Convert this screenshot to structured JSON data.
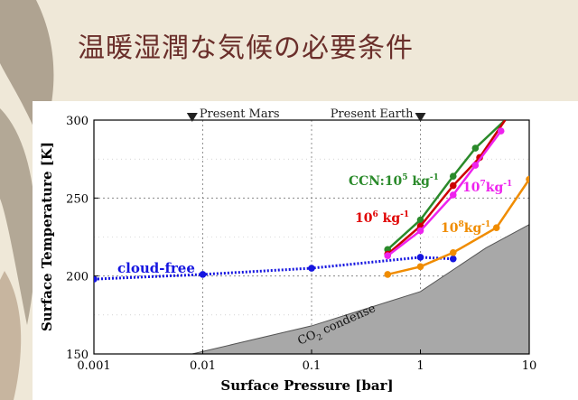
{
  "slide": {
    "title": "温暖湿潤な気候の必要条件"
  },
  "chart_data": {
    "type": "line",
    "xlabel": "Surface Pressure [bar]",
    "ylabel": "Surface  Temperature [K]",
    "xscale": "log",
    "xlim": [
      0.001,
      10
    ],
    "ylim": [
      150,
      300
    ],
    "x_ticks": [
      {
        "value": 0.001,
        "label": "0.001"
      },
      {
        "value": 0.01,
        "label": "0.01"
      },
      {
        "value": 0.1,
        "label": "0.1"
      },
      {
        "value": 1,
        "label": "1"
      },
      {
        "value": 10,
        "label": "10"
      }
    ],
    "y_ticks": [
      {
        "value": 150,
        "label": "150"
      },
      {
        "value": 200,
        "label": "200"
      },
      {
        "value": 250,
        "label": "250"
      },
      {
        "value": 300,
        "label": "300"
      }
    ],
    "grid": true,
    "markers_top": [
      {
        "x": 0.008,
        "label": "Present Mars"
      },
      {
        "x": 1,
        "label": "Present Earth"
      }
    ],
    "series": [
      {
        "name": "cloud-free",
        "color": "#1515e0",
        "style": "dotted",
        "x": [
          0.001,
          0.01,
          0.1,
          1,
          2
        ],
        "y": [
          198,
          201,
          205,
          212,
          211
        ]
      },
      {
        "name": "CCN:10^5 kg^-1",
        "color": "#2a8a2a",
        "style": "solid",
        "x": [
          0.5,
          1,
          2,
          3.2,
          6
        ],
        "y": [
          217,
          236,
          264,
          282,
          300
        ]
      },
      {
        "name": "10^6 kg^-1",
        "color": "#cc0000",
        "style": "solid",
        "x": [
          0.5,
          1,
          2,
          3.5,
          6
        ],
        "y": [
          214,
          232,
          258,
          276,
          300
        ]
      },
      {
        "name": "10^7 kg^-1",
        "color": "#ee22ee",
        "style": "solid",
        "x": [
          0.5,
          1,
          2,
          3.2,
          5.5
        ],
        "y": [
          213,
          229,
          252,
          271,
          293
        ]
      },
      {
        "name": "10^8 kg^-1",
        "color": "#f08c00",
        "style": "solid",
        "x": [
          0.5,
          1,
          2,
          5,
          10
        ],
        "y": [
          201,
          206,
          215,
          231,
          262
        ]
      }
    ],
    "annotations": [
      {
        "text": "CO2 condense",
        "region": "gray area below curve"
      }
    ],
    "condense_boundary": {
      "x": [
        0.008,
        0.1,
        1,
        4,
        10
      ],
      "y": [
        150,
        168,
        190,
        218,
        233
      ],
      "fill": "#a8a8a8"
    },
    "labels": {
      "cloud_free": "cloud-free",
      "ccn_prefix": "CCN:10",
      "ccn_exp": "5",
      "ccn_unit": " kg",
      "ccn_unit_exp": "-1",
      "s6_base": "10",
      "s6_exp": "6",
      "s6_unit": " kg",
      "s6_unit_exp": "-1",
      "s7_base": "10",
      "s7_exp": "7",
      "s7_unit": "kg",
      "s7_unit_exp": "-1",
      "s8_base": "10",
      "s8_exp": "8",
      "s8_unit": "kg",
      "s8_unit_exp": "-1",
      "co2": "CO",
      "co2_sub": "2",
      "condense": " condense"
    }
  }
}
